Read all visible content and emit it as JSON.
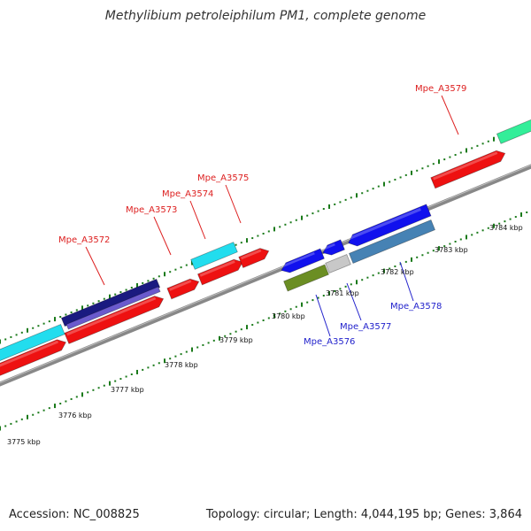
{
  "title": "Methylibium petroleiphilum PM1, complete genome",
  "footer": {
    "accession": "Accession: NC_008825",
    "summary": "Topology: circular; Length: 4,044,195 bp; Genes: 3,864"
  },
  "kbp_labels": [
    "3775 kbp",
    "3776 kbp",
    "3777 kbp",
    "3778 kbp",
    "3779 kbp",
    "3780 kbp",
    "3781 kbp",
    "3782 kbp",
    "3783 kbp",
    "3784 kbp"
  ],
  "gene_labels": {
    "top": [
      {
        "text": "Mpe_A3572",
        "color": "#dd2020"
      },
      {
        "text": "Mpe_A3573",
        "color": "#dd2020"
      },
      {
        "text": "Mpe_A3574",
        "color": "#dd2020"
      },
      {
        "text": "Mpe_A3575",
        "color": "#dd2020"
      },
      {
        "text": "Mpe_A3579",
        "color": "#dd2020"
      }
    ],
    "bottom": [
      {
        "text": "Mpe_A3576",
        "color": "#2222cc"
      },
      {
        "text": "Mpe_A3577",
        "color": "#2222cc"
      },
      {
        "text": "Mpe_A3578",
        "color": "#2222cc"
      }
    ]
  },
  "colors": {
    "backbone": "#8a8a8a",
    "tick": "#1a7a1a",
    "red_gene": "#ee1111",
    "blue_gene": "#1111ee",
    "cyan_gene": "#22ddee",
    "navy_gene": "#1a1a80",
    "purple_gene": "#6a5acd",
    "olive_gene": "#6b8e23",
    "gray_gene": "#c8c8c8",
    "steel_gene": "#4682b4",
    "teal_gene": "#33ee99"
  }
}
